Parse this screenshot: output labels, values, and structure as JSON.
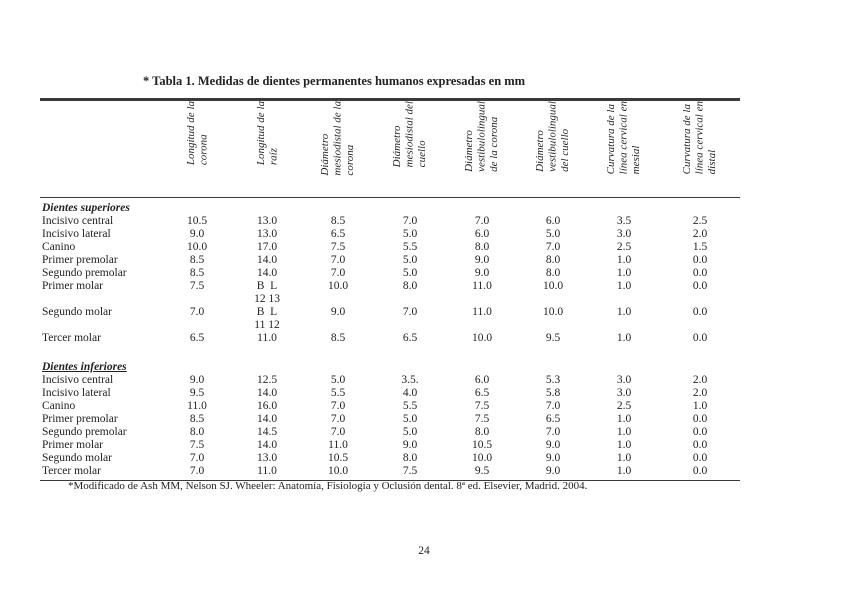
{
  "title": "* Tabla 1. Medidas de dientes permanentes humanos expresadas en mm",
  "footnote": "*Modificado de Ash MM, Nelson SJ. Wheeler: Anatomía, Fisiología y Oclusión dental. 8ª ed. Elsevier, Madrid. 2004.",
  "page": {
    "number": "24"
  },
  "table": {
    "columns": [
      "Longitud de la\ncorona",
      "Longitud de la\nraíz",
      "Diámetro\nmesiodistal de la\ncorona",
      "Diámetro\nmesiodistal del\ncuello",
      "Diámetro\nvestibulolingual\nde la corona",
      "Diámetro\nvestibulolingual\ndel cuello",
      "Curvatura de la\nlínea cervical en\nmesial",
      "Curvatura de la\nlínea cervical en\ndistal"
    ],
    "sections": [
      {
        "title": "Dientes superiores",
        "underline": false,
        "rows": [
          {
            "label": "Incisivo central",
            "values": [
              "10.5",
              "13.0",
              "8.5",
              "7.0",
              "7.0",
              "6.0",
              "3.5",
              "2.5"
            ]
          },
          {
            "label": "Incisivo lateral",
            "values": [
              "9.0",
              "13.0",
              "6.5",
              "5.0",
              "6.0",
              "5.0",
              "3.0",
              "2.0"
            ]
          },
          {
            "label": "Canino",
            "values": [
              "10.0",
              "17.0",
              "7.5",
              "5.5",
              "8.0",
              "7.0",
              "2.5",
              "1.5"
            ]
          },
          {
            "label": "Primer premolar",
            "values": [
              "8.5",
              "14.0",
              "7.0",
              "5.0",
              "9.0",
              "8.0",
              "1.0",
              "0.0"
            ]
          },
          {
            "label": "Segundo premolar",
            "values": [
              "8.5",
              "14.0",
              "7.0",
              "5.0",
              "9.0",
              "8.0",
              "1.0",
              "0.0"
            ]
          },
          {
            "label": "Primer molar",
            "values": [
              "7.5",
              "B  L\n12 13",
              "10.0",
              "8.0",
              "11.0",
              "10.0",
              "1.0",
              "0.0"
            ]
          },
          {
            "label": "Segundo molar",
            "values": [
              "7.0",
              "B  L\n11 12",
              "9.0",
              "7.0",
              "11.0",
              "10.0",
              "1.0",
              "0.0"
            ]
          },
          {
            "label": "Tercer molar",
            "values": [
              "6.5",
              "11.0",
              "8.5",
              "6.5",
              "10.0",
              "9.5",
              "1.0",
              "0.0"
            ]
          }
        ]
      },
      {
        "title": "Dientes inferiores",
        "underline": true,
        "rows": [
          {
            "label": "Incisivo central",
            "values": [
              "9.0",
              "12.5",
              "5.0",
              "3.5.",
              "6.0",
              "5.3",
              "3.0",
              "2.0"
            ]
          },
          {
            "label": "Incisivo lateral",
            "values": [
              "9.5",
              "14.0",
              "5.5",
              "4.0",
              "6.5",
              "5.8",
              "3.0",
              "2.0"
            ]
          },
          {
            "label": "Canino",
            "values": [
              "11.0",
              "16.0",
              "7.0",
              "5.5",
              "7.5",
              "7.0",
              "2.5",
              "1.0"
            ]
          },
          {
            "label": "Primer premolar",
            "values": [
              "8.5",
              "14.0",
              "7.0",
              "5.0",
              "7.5",
              "6.5",
              "1.0",
              "0.0"
            ]
          },
          {
            "label": "Segundo premolar",
            "values": [
              "8.0",
              "14.5",
              "7.0",
              "5.0",
              "8.0",
              "7.0",
              "1.0",
              "0.0"
            ]
          },
          {
            "label": "Primer molar",
            "values": [
              "7.5",
              "14.0",
              "11.0",
              "9.0",
              "10.5",
              "9.0",
              "1.0",
              "0.0"
            ]
          },
          {
            "label": "Segundo molar",
            "values": [
              "7.0",
              "13.0",
              "10.5",
              "8.0",
              "10.0",
              "9.0",
              "1.0",
              "0.0"
            ]
          },
          {
            "label": "Tercer molar",
            "values": [
              "7.0",
              "11.0",
              "10.0",
              "7.5",
              "9.5",
              "9.0",
              "1.0",
              "0.0"
            ]
          }
        ]
      }
    ]
  }
}
